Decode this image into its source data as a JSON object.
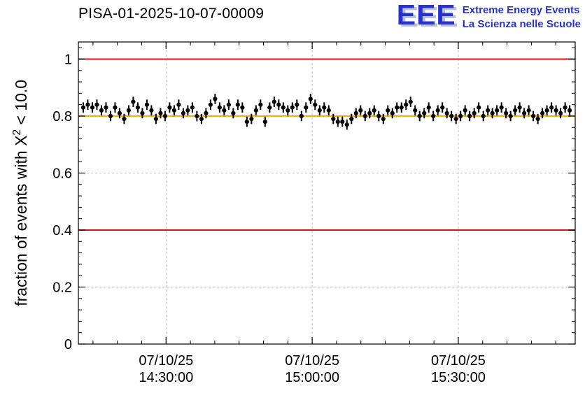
{
  "header": {
    "title": "PISA-01-2025-10-07-00009"
  },
  "logo": {
    "acronym": "EEE",
    "line1": "Extreme Energy Events",
    "line2": "La Scienza nelle Scuole",
    "color": "#2733cc"
  },
  "chart_data": {
    "type": "scatter",
    "title": "PISA-01-2025-10-07-00009",
    "grid": {
      "on": true,
      "color": "#bdbdbd"
    },
    "x_axis": {
      "kind": "time",
      "min_minutes": 852,
      "max_minutes": 954,
      "minor_step_minutes": 5,
      "ticks": [
        {
          "minutes": 870,
          "date": "07/10/25",
          "time": "14:30:00"
        },
        {
          "minutes": 900,
          "date": "07/10/25",
          "time": "15:00:00"
        },
        {
          "minutes": 930,
          "date": "07/10/25",
          "time": "15:30:00"
        }
      ]
    },
    "y_axis": {
      "min": 0,
      "max": 1.06,
      "ticks": [
        0,
        0.2,
        0.4,
        0.6,
        0.8,
        1
      ],
      "minor_step": 0.04,
      "label_pre": "fraction of events with X",
      "label_sup": "2",
      "label_post": " < 10.0"
    },
    "ref_lines": [
      {
        "y": 1.0,
        "color": "#dd1111"
      },
      {
        "y": 0.4,
        "color": "#dd1111"
      },
      {
        "y": 0.8,
        "color": "#ffaa00"
      }
    ],
    "points": {
      "start_minutes": 853.0,
      "step_seconds": 56,
      "yerr": 0.018,
      "marker_color": "#000000",
      "y": [
        0.83,
        0.84,
        0.83,
        0.84,
        0.82,
        0.83,
        0.8,
        0.83,
        0.81,
        0.79,
        0.82,
        0.85,
        0.83,
        0.81,
        0.84,
        0.82,
        0.79,
        0.81,
        0.8,
        0.83,
        0.82,
        0.84,
        0.81,
        0.82,
        0.83,
        0.8,
        0.79,
        0.81,
        0.84,
        0.86,
        0.83,
        0.82,
        0.84,
        0.81,
        0.84,
        0.83,
        0.78,
        0.79,
        0.82,
        0.84,
        0.78,
        0.83,
        0.85,
        0.84,
        0.83,
        0.82,
        0.83,
        0.84,
        0.8,
        0.83,
        0.86,
        0.84,
        0.82,
        0.83,
        0.82,
        0.79,
        0.78,
        0.78,
        0.77,
        0.79,
        0.81,
        0.82,
        0.8,
        0.81,
        0.82,
        0.8,
        0.79,
        0.82,
        0.81,
        0.83,
        0.83,
        0.84,
        0.85,
        0.82,
        0.8,
        0.81,
        0.83,
        0.8,
        0.82,
        0.83,
        0.81,
        0.8,
        0.79,
        0.8,
        0.82,
        0.8,
        0.81,
        0.83,
        0.8,
        0.82,
        0.81,
        0.82,
        0.83,
        0.81,
        0.8,
        0.82,
        0.83,
        0.81,
        0.82,
        0.8,
        0.79,
        0.81,
        0.82,
        0.83,
        0.82,
        0.81,
        0.83,
        0.82
      ]
    }
  }
}
